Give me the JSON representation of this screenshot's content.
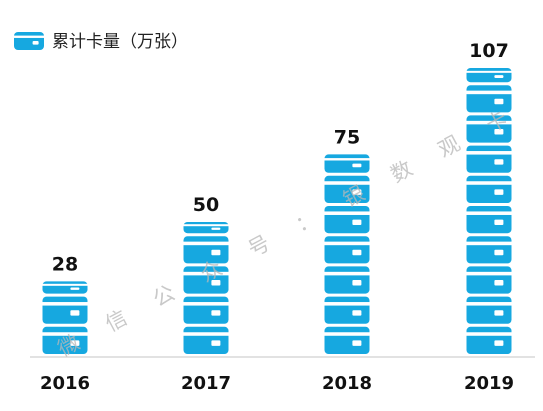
{
  "chart_data": {
    "type": "bar",
    "categories": [
      "2016",
      "2017",
      "2018",
      "2019"
    ],
    "series": [
      {
        "name": "累计卡量（万张）",
        "values": [
          28,
          50,
          75,
          107
        ]
      }
    ],
    "title": "",
    "xlabel": "",
    "ylabel": "",
    "ylim": [
      0,
      107
    ],
    "grid": false,
    "legend": "top-left",
    "colors": {
      "bar": "#16a8e0",
      "card_stripe": "#ffffff",
      "chip": "#ffffff",
      "baseline": "#d9d9d9"
    },
    "legend_icon": "bank-card-icon",
    "bar_icon": "stacked-bank-card-icon"
  },
  "watermark": {
    "chars": [
      "微",
      "信",
      "公",
      "众",
      "号",
      "：",
      "银",
      "数",
      "观",
      "卡"
    ]
  }
}
